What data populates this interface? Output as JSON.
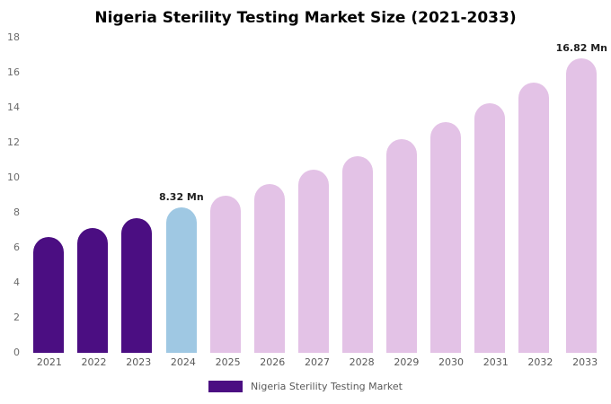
{
  "chart_data": {
    "type": "bar",
    "title": "Nigeria Sterility Testing Market Size (2021-2033)",
    "categories": [
      "2021",
      "2022",
      "2023",
      "2024",
      "2025",
      "2026",
      "2027",
      "2028",
      "2029",
      "2030",
      "2031",
      "2032",
      "2033"
    ],
    "values": [
      6.6,
      7.15,
      7.7,
      8.32,
      8.95,
      9.65,
      10.45,
      11.25,
      12.2,
      13.2,
      14.25,
      15.45,
      16.82
    ],
    "unit": "Mn",
    "bar_colors": [
      "#4b0e82",
      "#4b0e82",
      "#4b0e82",
      "#9fc8e3",
      "#e3c2e6",
      "#e3c2e6",
      "#e3c2e6",
      "#e3c2e6",
      "#e3c2e6",
      "#e3c2e6",
      "#e3c2e6",
      "#e3c2e6",
      "#e3c2e6"
    ],
    "data_labels": {
      "2024": "8.32 Mn",
      "2033": "16.82 Mn"
    },
    "ylim": [
      0,
      18
    ],
    "yticks": [
      0,
      2,
      4,
      6,
      8,
      10,
      12,
      14,
      16,
      18
    ],
    "grid": false,
    "legend_position": "bottom",
    "legend": {
      "entries": [
        {
          "label": "Nigeria Sterility Testing Market",
          "color": "#4b0e82"
        }
      ]
    }
  }
}
